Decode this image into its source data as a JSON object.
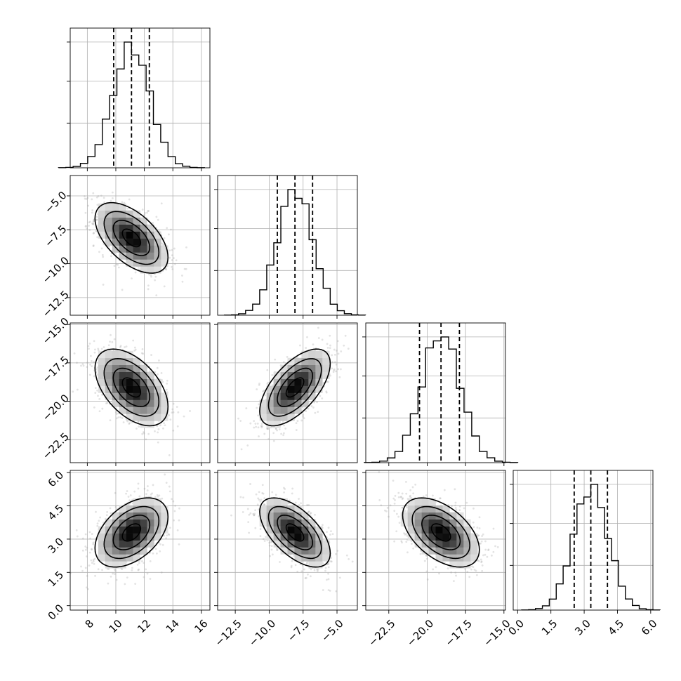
{
  "chart_data": {
    "type": "corner",
    "params": [
      {
        "id": "p1",
        "mean": 11.1,
        "sd": 1.28,
        "range": [
          6.8,
          16.6
        ],
        "ticks": [
          8,
          10,
          12,
          14,
          16
        ],
        "tick_labels": [
          "8",
          "10",
          "12",
          "14",
          "16"
        ],
        "quantiles": [
          9.85,
          11.1,
          12.35
        ]
      },
      {
        "id": "p2",
        "mean": -8.1,
        "sd": 1.3,
        "range": [
          -13.8,
          -3.5
        ],
        "ticks": [
          -12.5,
          -10.0,
          -7.5,
          -5.0
        ],
        "tick_labels": [
          "−12.5",
          "−10.0",
          "−7.5",
          "−5.0"
        ],
        "quantiles": [
          -9.4,
          -8.1,
          -6.8
        ]
      },
      {
        "id": "p3",
        "mean": -19.1,
        "sd": 1.25,
        "range": [
          -24.0,
          -14.9
        ],
        "ticks": [
          -22.5,
          -20.0,
          -17.5,
          -15.0
        ],
        "tick_labels": [
          "−22.5",
          "−20.0",
          "−17.5",
          "−15.0"
        ],
        "quantiles": [
          -20.5,
          -19.1,
          -17.9
        ]
      },
      {
        "id": "p4",
        "mean": 3.3,
        "sd": 0.78,
        "range": [
          -0.2,
          6.1
        ],
        "ticks": [
          0.0,
          1.5,
          3.0,
          4.5,
          6.0
        ],
        "tick_labels": [
          "0.0",
          "1.5",
          "3.0",
          "4.5",
          "6.0"
        ],
        "quantiles": [
          2.55,
          3.3,
          4.05
        ]
      }
    ],
    "correlations": {
      "1-0": -0.55,
      "2-0": -0.5,
      "2-1": 0.62,
      "3-0": 0.45,
      "3-1": -0.6,
      "3-2": -0.5
    },
    "histogram_bins": 20,
    "contour_levels_sigma": [
      0.5,
      1.0,
      1.5,
      2.0
    ],
    "quantile_line_style": "dashed",
    "grid": true,
    "colors": {
      "line": "#000000",
      "points": "#9a9a9a"
    }
  }
}
